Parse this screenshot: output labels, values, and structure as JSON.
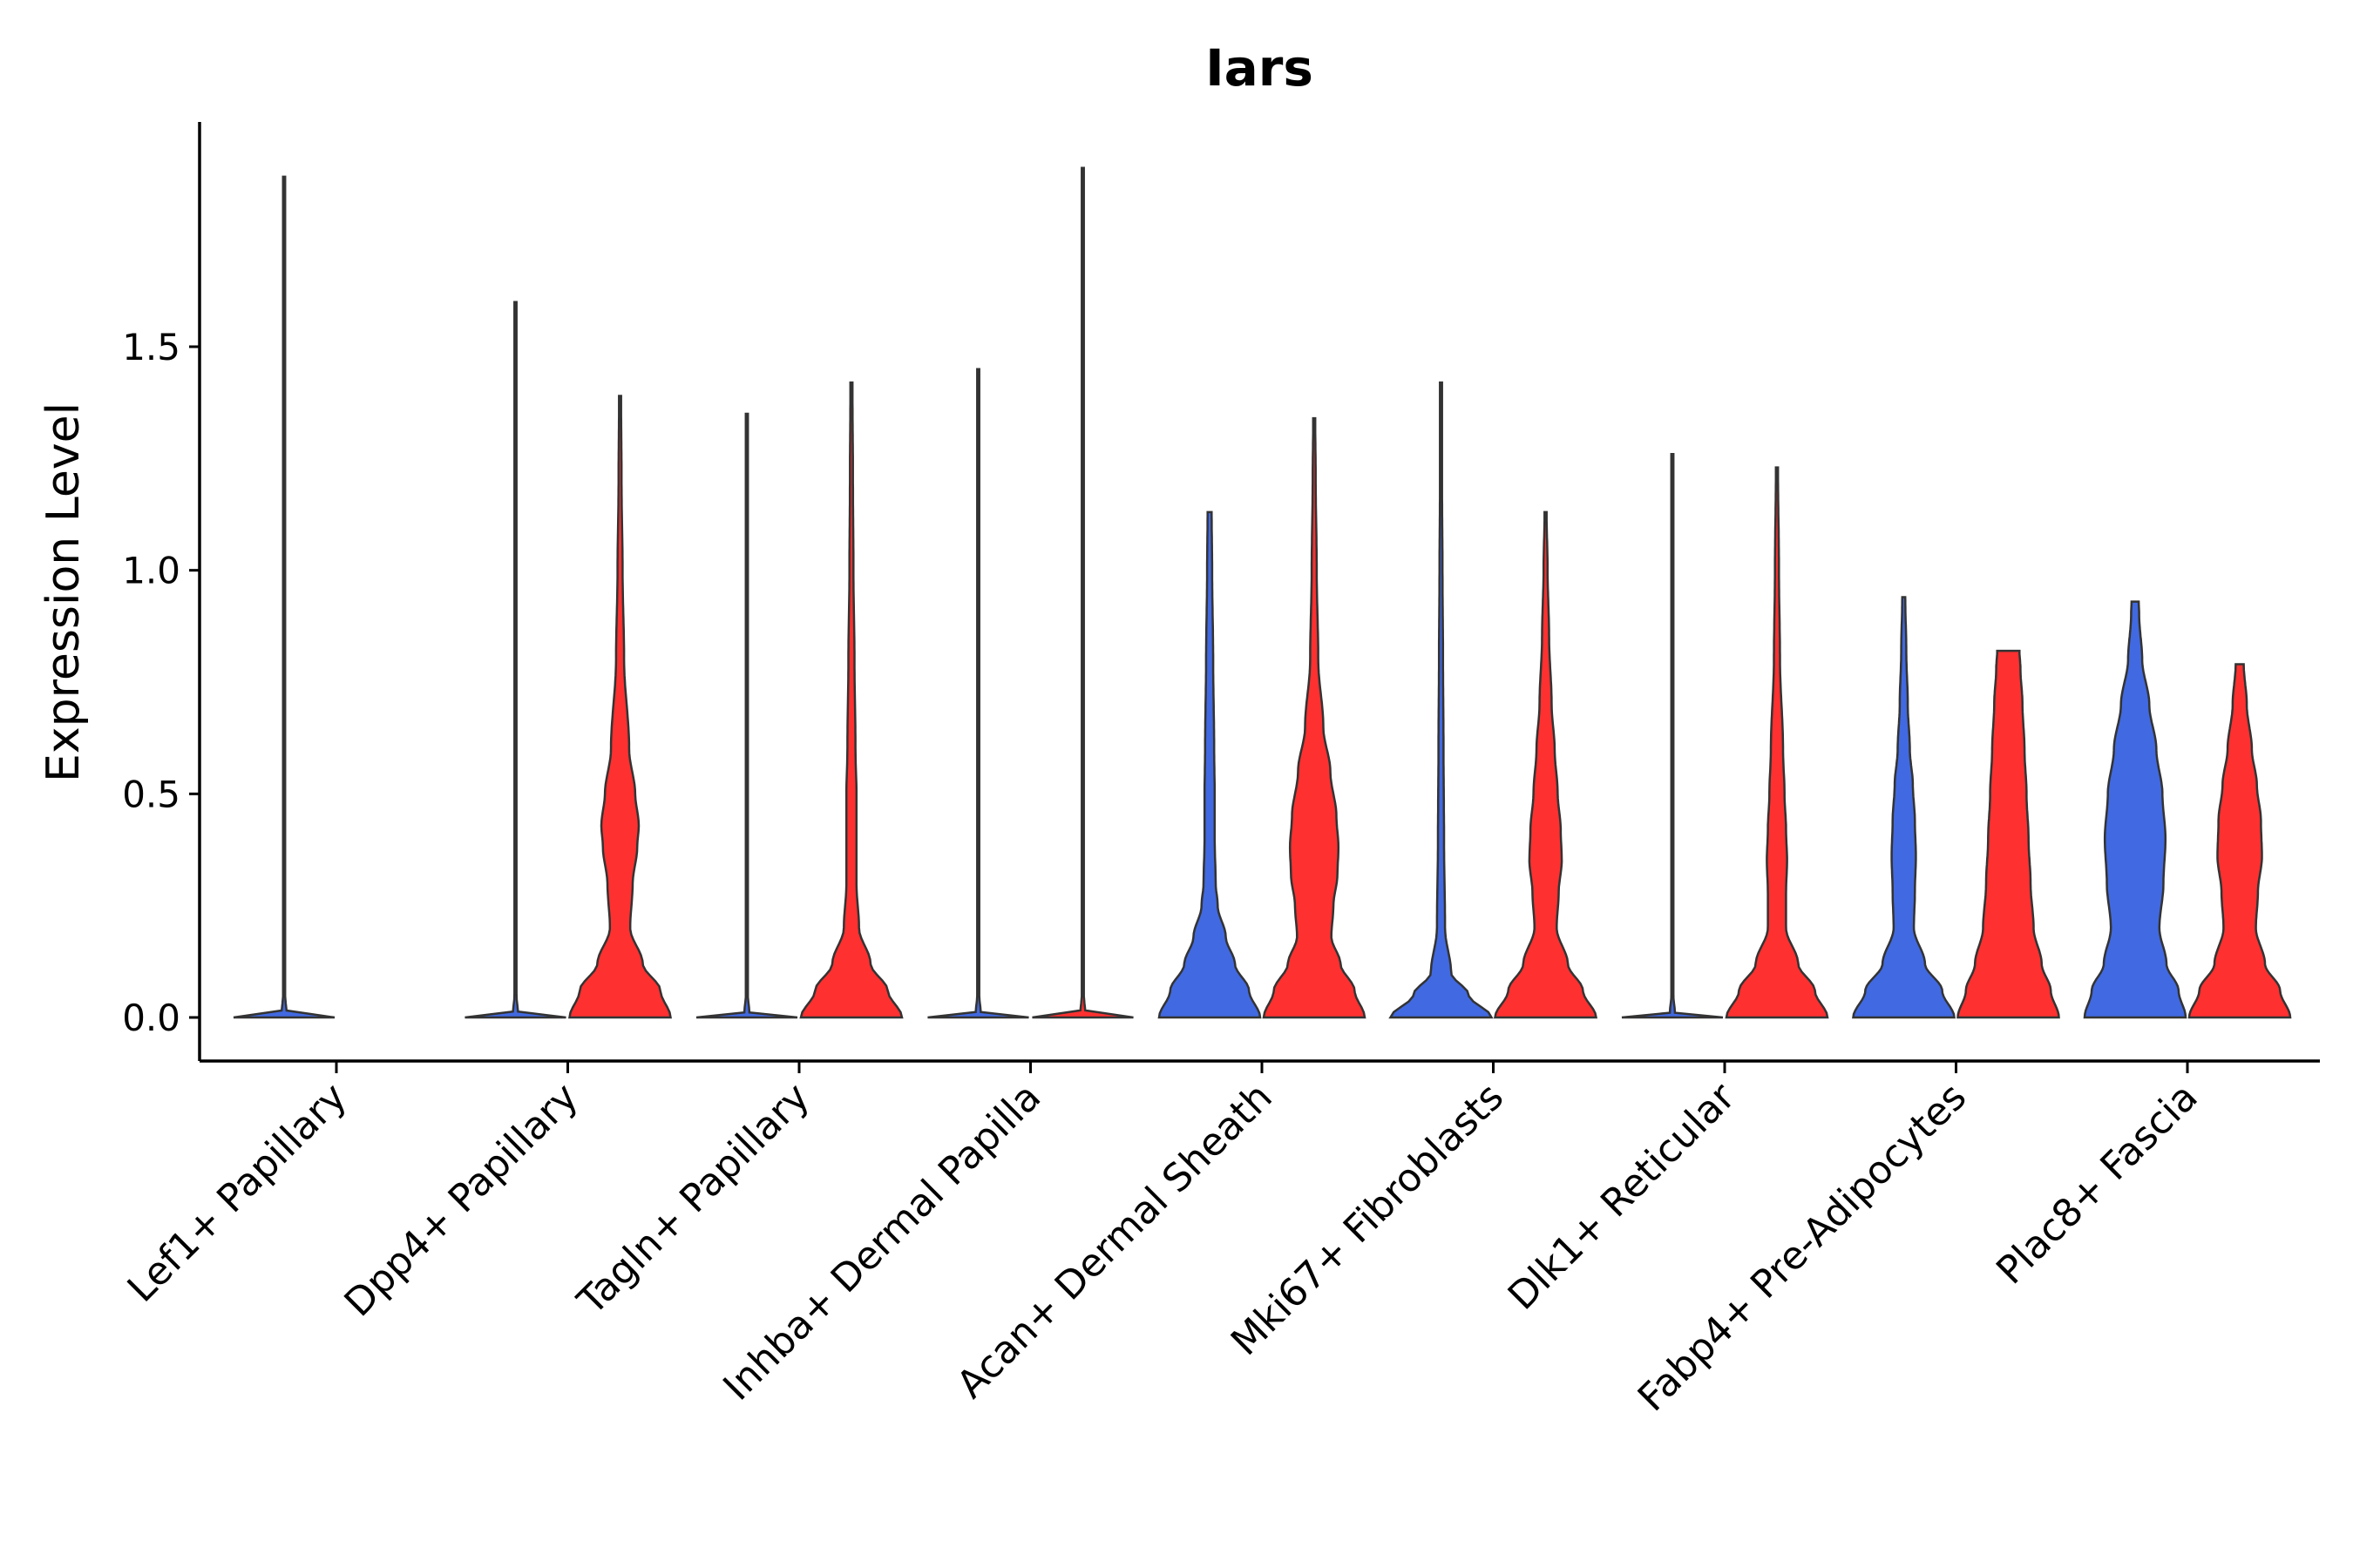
{
  "chart_data": {
    "type": "violin",
    "title": "Iars",
    "xlabel": "",
    "ylabel": "Expression Level",
    "ylim": [
      -0.1,
      2.0
    ],
    "yticks": [
      0.0,
      0.5,
      1.0,
      1.5
    ],
    "ytick_labels": [
      "0.0",
      "0.5",
      "1.0",
      "1.5"
    ],
    "legend": "none",
    "colors": {
      "group1": "#4169E1",
      "group2": "#FF3030",
      "outline": "#333333"
    },
    "categories": [
      "Lef1+ Papillary",
      "Dpp4+ Papillary",
      "Tagln+ Papillary",
      "Inhba+ Dermal Papilla",
      "Acan+ Dermal Sheath",
      "Mki67+ Fibroblasts",
      "Dlk1+ Reticular",
      "Fabp4+ Pre-Adipocytes",
      "Plac8+ Fascia"
    ],
    "violins": [
      {
        "category": "Lef1+ Papillary",
        "group": "group1",
        "max": 1.88,
        "density": [
          [
            0,
            1.0
          ],
          [
            0.01,
            0.05
          ],
          [
            0.05,
            0.02
          ],
          [
            1.88,
            0.01
          ]
        ]
      },
      {
        "category": "Dpp4+ Papillary",
        "group": "group1",
        "max": 1.6,
        "density": [
          [
            0,
            1.0
          ],
          [
            0.01,
            0.05
          ],
          [
            0.05,
            0.02
          ],
          [
            1.6,
            0.01
          ]
        ]
      },
      {
        "category": "Dpp4+ Papillary",
        "group": "group2",
        "max": 1.39,
        "density": [
          [
            0,
            1.0
          ],
          [
            0.06,
            0.8
          ],
          [
            0.12,
            0.45
          ],
          [
            0.2,
            0.2
          ],
          [
            0.3,
            0.25
          ],
          [
            0.38,
            0.34
          ],
          [
            0.43,
            0.37
          ],
          [
            0.5,
            0.3
          ],
          [
            0.6,
            0.18
          ],
          [
            0.8,
            0.08
          ],
          [
            1.0,
            0.05
          ],
          [
            1.2,
            0.03
          ],
          [
            1.39,
            0.02
          ]
        ]
      },
      {
        "category": "Tagln+ Papillary",
        "group": "group1",
        "max": 1.35,
        "density": [
          [
            0,
            1.0
          ],
          [
            0.01,
            0.05
          ],
          [
            0.05,
            0.02
          ],
          [
            1.35,
            0.01
          ]
        ]
      },
      {
        "category": "Tagln+ Papillary",
        "group": "group2",
        "max": 1.42,
        "density": [
          [
            0,
            1.0
          ],
          [
            0.06,
            0.72
          ],
          [
            0.12,
            0.38
          ],
          [
            0.2,
            0.15
          ],
          [
            0.3,
            0.1
          ],
          [
            0.4,
            0.1
          ],
          [
            0.5,
            0.1
          ],
          [
            0.6,
            0.08
          ],
          [
            0.8,
            0.06
          ],
          [
            1.0,
            0.04
          ],
          [
            1.2,
            0.03
          ],
          [
            1.42,
            0.02
          ]
        ]
      },
      {
        "category": "Inhba+ Dermal Papilla",
        "group": "group1",
        "max": 1.45,
        "density": [
          [
            0,
            1.0
          ],
          [
            0.01,
            0.05
          ],
          [
            0.05,
            0.02
          ],
          [
            1.45,
            0.01
          ]
        ]
      },
      {
        "category": "Inhba+ Dermal Papilla",
        "group": "group2",
        "max": 1.9,
        "density": [
          [
            0,
            1.0
          ],
          [
            0.01,
            0.05
          ],
          [
            0.05,
            0.02
          ],
          [
            1.9,
            0.01
          ]
        ]
      },
      {
        "category": "Acan+ Dermal Sheath",
        "group": "group1",
        "max": 1.13,
        "density": [
          [
            0,
            1.0
          ],
          [
            0.06,
            0.78
          ],
          [
            0.12,
            0.5
          ],
          [
            0.18,
            0.32
          ],
          [
            0.25,
            0.16
          ],
          [
            0.3,
            0.12
          ],
          [
            0.4,
            0.1
          ],
          [
            0.5,
            0.1
          ],
          [
            0.6,
            0.09
          ],
          [
            0.8,
            0.07
          ],
          [
            1.0,
            0.05
          ],
          [
            1.13,
            0.04
          ]
        ]
      },
      {
        "category": "Acan+ Dermal Sheath",
        "group": "group2",
        "max": 1.34,
        "density": [
          [
            0,
            1.0
          ],
          [
            0.06,
            0.8
          ],
          [
            0.12,
            0.52
          ],
          [
            0.18,
            0.34
          ],
          [
            0.25,
            0.38
          ],
          [
            0.32,
            0.46
          ],
          [
            0.38,
            0.48
          ],
          [
            0.45,
            0.44
          ],
          [
            0.55,
            0.32
          ],
          [
            0.65,
            0.18
          ],
          [
            0.8,
            0.08
          ],
          [
            1.0,
            0.05
          ],
          [
            1.2,
            0.03
          ],
          [
            1.34,
            0.02
          ]
        ]
      },
      {
        "category": "Mki67+ Fibroblasts",
        "group": "group1",
        "max": 1.42,
        "density": [
          [
            0,
            1.0
          ],
          [
            0.05,
            0.55
          ],
          [
            0.1,
            0.2
          ],
          [
            0.2,
            0.08
          ],
          [
            0.4,
            0.06
          ],
          [
            0.6,
            0.05
          ],
          [
            0.8,
            0.04
          ],
          [
            1.0,
            0.03
          ],
          [
            1.2,
            0.02
          ],
          [
            1.42,
            0.01
          ]
        ]
      },
      {
        "category": "Mki67+ Fibroblasts",
        "group": "group2",
        "max": 1.13,
        "density": [
          [
            0,
            1.0
          ],
          [
            0.06,
            0.74
          ],
          [
            0.12,
            0.44
          ],
          [
            0.2,
            0.22
          ],
          [
            0.28,
            0.26
          ],
          [
            0.35,
            0.32
          ],
          [
            0.42,
            0.3
          ],
          [
            0.5,
            0.24
          ],
          [
            0.6,
            0.18
          ],
          [
            0.7,
            0.12
          ],
          [
            0.85,
            0.07
          ],
          [
            1.0,
            0.04
          ],
          [
            1.13,
            0.02
          ]
        ]
      },
      {
        "category": "Dlk1+ Reticular",
        "group": "group1",
        "max": 1.26,
        "density": [
          [
            0,
            1.0
          ],
          [
            0.01,
            0.05
          ],
          [
            0.05,
            0.02
          ],
          [
            1.26,
            0.01
          ]
        ]
      },
      {
        "category": "Dlk1+ Reticular",
        "group": "group2",
        "max": 1.23,
        "density": [
          [
            0,
            1.0
          ],
          [
            0.06,
            0.75
          ],
          [
            0.12,
            0.42
          ],
          [
            0.2,
            0.18
          ],
          [
            0.28,
            0.18
          ],
          [
            0.35,
            0.2
          ],
          [
            0.42,
            0.18
          ],
          [
            0.5,
            0.15
          ],
          [
            0.6,
            0.12
          ],
          [
            0.8,
            0.06
          ],
          [
            1.0,
            0.04
          ],
          [
            1.23,
            0.02
          ]
        ]
      },
      {
        "category": "Fabp4+ Pre-Adipocytes",
        "group": "group1",
        "max": 0.94,
        "density": [
          [
            0,
            1.0
          ],
          [
            0.06,
            0.76
          ],
          [
            0.12,
            0.42
          ],
          [
            0.2,
            0.2
          ],
          [
            0.28,
            0.22
          ],
          [
            0.36,
            0.24
          ],
          [
            0.44,
            0.22
          ],
          [
            0.52,
            0.18
          ],
          [
            0.6,
            0.12
          ],
          [
            0.7,
            0.08
          ],
          [
            0.82,
            0.05
          ],
          [
            0.94,
            0.03
          ]
        ]
      },
      {
        "category": "Fabp4+ Pre-Adipocytes",
        "group": "group2",
        "max": 0.82,
        "density": [
          [
            0,
            1.0
          ],
          [
            0.06,
            0.84
          ],
          [
            0.12,
            0.66
          ],
          [
            0.2,
            0.5
          ],
          [
            0.3,
            0.44
          ],
          [
            0.4,
            0.4
          ],
          [
            0.5,
            0.36
          ],
          [
            0.6,
            0.32
          ],
          [
            0.7,
            0.28
          ],
          [
            0.78,
            0.24
          ],
          [
            0.82,
            0.22
          ]
        ]
      },
      {
        "category": "Plac8+ Fascia",
        "group": "group1",
        "max": 0.93,
        "density": [
          [
            0,
            1.0
          ],
          [
            0.06,
            0.86
          ],
          [
            0.12,
            0.62
          ],
          [
            0.2,
            0.48
          ],
          [
            0.3,
            0.56
          ],
          [
            0.4,
            0.6
          ],
          [
            0.5,
            0.54
          ],
          [
            0.6,
            0.42
          ],
          [
            0.7,
            0.28
          ],
          [
            0.8,
            0.14
          ],
          [
            0.9,
            0.08
          ],
          [
            0.93,
            0.07
          ]
        ]
      },
      {
        "category": "Plac8+ Fascia",
        "group": "group2",
        "max": 0.79,
        "density": [
          [
            0,
            1.0
          ],
          [
            0.06,
            0.8
          ],
          [
            0.12,
            0.5
          ],
          [
            0.2,
            0.32
          ],
          [
            0.28,
            0.36
          ],
          [
            0.36,
            0.44
          ],
          [
            0.44,
            0.42
          ],
          [
            0.52,
            0.34
          ],
          [
            0.6,
            0.24
          ],
          [
            0.7,
            0.14
          ],
          [
            0.79,
            0.08
          ]
        ]
      }
    ]
  }
}
